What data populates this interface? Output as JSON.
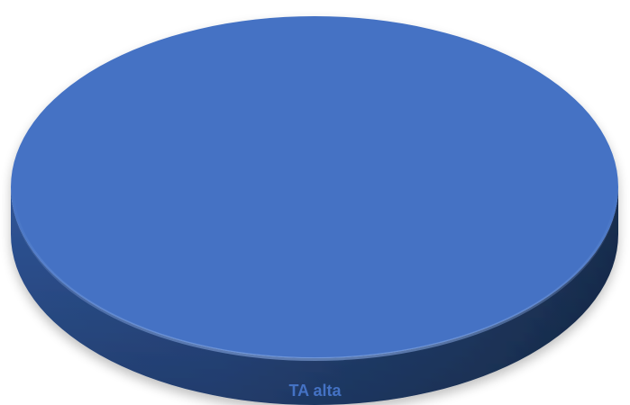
{
  "chart_data": {
    "type": "pie",
    "style": "3d",
    "categories": [
      "TA alta"
    ],
    "values": [
      1
    ],
    "colors": [
      "#4472C4"
    ],
    "legend": {
      "position": "bottom",
      "entries": [
        "TA alta"
      ]
    },
    "title": ""
  }
}
